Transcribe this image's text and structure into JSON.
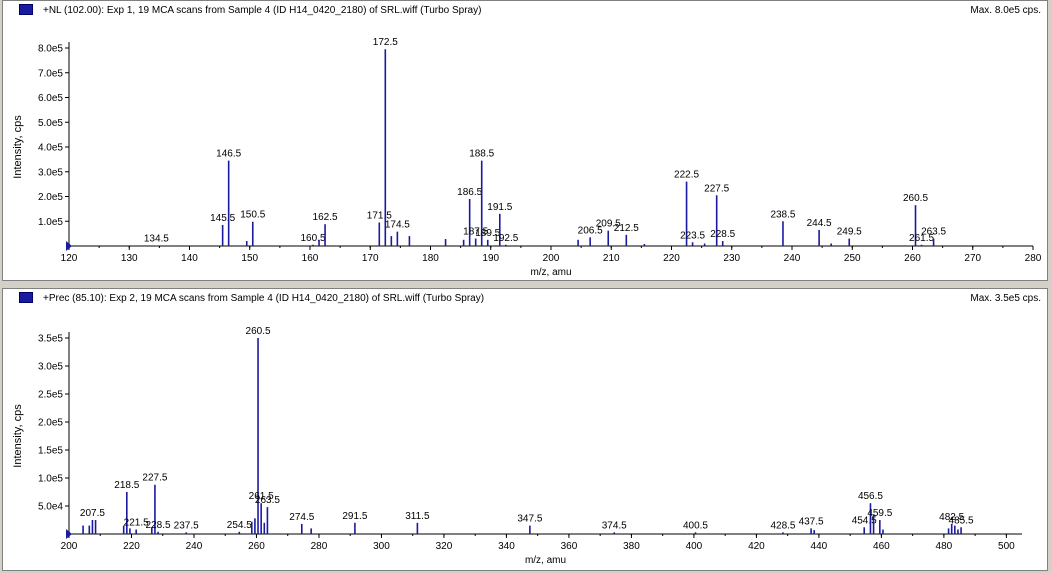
{
  "colors": {
    "trace": "#1a1aa0",
    "axis": "#000000",
    "marker": "#1a1aa0",
    "background": "#ffffff",
    "frame": "#d4d0c8"
  },
  "panels": [
    {
      "title": "+NL (102.00): Exp 1, 19 MCA scans from Sample 4 (ID H14_0420_2180) of SRL.wiff (Turbo Spray)",
      "max_label": "Max. 8.0e5 cps."
    },
    {
      "title": "+Prec (85.10): Exp 2, 19 MCA scans from Sample 4 (ID H14_0420_2180) of SRL.wiff (Turbo Spray)",
      "max_label": "Max. 3.5e5 cps."
    }
  ],
  "chart_data": [
    {
      "type": "bar",
      "xlabel": "m/z, amu",
      "ylabel": "Intensity, cps",
      "xlim": [
        120,
        280
      ],
      "ylim": [
        0,
        800000
      ],
      "xticks": [
        120,
        130,
        140,
        150,
        160,
        170,
        180,
        190,
        200,
        210,
        220,
        230,
        240,
        250,
        260,
        270,
        280
      ],
      "xtick_labels": [
        "120",
        "130",
        "140",
        "150",
        "160",
        "170",
        "180",
        "190",
        "200",
        "210",
        "220",
        "230",
        "240",
        "250",
        "260",
        "270",
        "280"
      ],
      "yticks": [
        100000,
        200000,
        300000,
        400000,
        500000,
        600000,
        700000,
        800000
      ],
      "ytick_labels": [
        "1.0e5",
        "2.0e5",
        "3.0e5",
        "4.0e5",
        "5.0e5",
        "6.0e5",
        "7.0e5",
        "8.0e5"
      ],
      "peaks": [
        {
          "x": 134.5,
          "y": 2000,
          "label": "134.5"
        },
        {
          "x": 145.5,
          "y": 85000,
          "label": "145.5"
        },
        {
          "x": 146.5,
          "y": 345000,
          "label": "146.5"
        },
        {
          "x": 149.5,
          "y": 20000,
          "label": ""
        },
        {
          "x": 150.5,
          "y": 98000,
          "label": "150.5"
        },
        {
          "x": 160.5,
          "y": 5000,
          "label": "160.5"
        },
        {
          "x": 161.5,
          "y": 25000,
          "label": ""
        },
        {
          "x": 162.5,
          "y": 88000,
          "label": "162.5"
        },
        {
          "x": 171.5,
          "y": 95000,
          "label": "171.5"
        },
        {
          "x": 172.5,
          "y": 795000,
          "label": "172.5"
        },
        {
          "x": 173.5,
          "y": 40000,
          "label": ""
        },
        {
          "x": 174.5,
          "y": 58000,
          "label": "174.5"
        },
        {
          "x": 176.5,
          "y": 40000,
          "label": ""
        },
        {
          "x": 182.5,
          "y": 28000,
          "label": ""
        },
        {
          "x": 185.5,
          "y": 25000,
          "label": ""
        },
        {
          "x": 186.5,
          "y": 190000,
          "label": "186.5"
        },
        {
          "x": 187.5,
          "y": 30000,
          "label": "187.5"
        },
        {
          "x": 188.5,
          "y": 345000,
          "label": "188.5"
        },
        {
          "x": 189.5,
          "y": 25000,
          "label": "189.5"
        },
        {
          "x": 191.5,
          "y": 130000,
          "label": "191.5"
        },
        {
          "x": 192.5,
          "y": 5000,
          "label": "192.5"
        },
        {
          "x": 204.5,
          "y": 25000,
          "label": ""
        },
        {
          "x": 206.5,
          "y": 35000,
          "label": "206.5"
        },
        {
          "x": 209.5,
          "y": 62000,
          "label": "209.5"
        },
        {
          "x": 212.5,
          "y": 45000,
          "label": "212.5"
        },
        {
          "x": 215.5,
          "y": 8000,
          "label": ""
        },
        {
          "x": 222.5,
          "y": 260000,
          "label": "222.5"
        },
        {
          "x": 223.5,
          "y": 15000,
          "label": "223.5"
        },
        {
          "x": 225.5,
          "y": 10000,
          "label": ""
        },
        {
          "x": 227.5,
          "y": 205000,
          "label": "227.5"
        },
        {
          "x": 228.5,
          "y": 20000,
          "label": "228.5"
        },
        {
          "x": 238.5,
          "y": 100000,
          "label": "238.5"
        },
        {
          "x": 244.5,
          "y": 65000,
          "label": "244.5"
        },
        {
          "x": 246.5,
          "y": 10000,
          "label": ""
        },
        {
          "x": 249.5,
          "y": 30000,
          "label": "249.5"
        },
        {
          "x": 260.5,
          "y": 165000,
          "label": "260.5"
        },
        {
          "x": 261.5,
          "y": 5000,
          "label": "261.5"
        },
        {
          "x": 263.5,
          "y": 30000,
          "label": "263.5"
        }
      ]
    },
    {
      "type": "bar",
      "xlabel": "m/z, amu",
      "ylabel": "Intensity, cps",
      "xlim": [
        200,
        505
      ],
      "ylim": [
        0,
        350000
      ],
      "xticks": [
        200,
        220,
        240,
        260,
        280,
        300,
        320,
        340,
        360,
        380,
        400,
        420,
        440,
        460,
        480,
        500
      ],
      "xtick_labels": [
        "200",
        "220",
        "240",
        "260",
        "280",
        "300",
        "320",
        "340",
        "360",
        "380",
        "400",
        "420",
        "440",
        "460",
        "480",
        "500"
      ],
      "yticks": [
        50000,
        100000,
        150000,
        200000,
        250000,
        300000,
        350000
      ],
      "ytick_labels": [
        "5.0e4",
        "1.0e5",
        "1.5e5",
        "2.0e5",
        "2.5e5",
        "3.0e5",
        "3.5e5"
      ],
      "peaks": [
        {
          "x": 204.5,
          "y": 15000,
          "label": ""
        },
        {
          "x": 206.5,
          "y": 15000,
          "label": ""
        },
        {
          "x": 207.5,
          "y": 25000,
          "label": "207.5"
        },
        {
          "x": 208.5,
          "y": 25000,
          "label": ""
        },
        {
          "x": 217.5,
          "y": 15000,
          "label": ""
        },
        {
          "x": 218.5,
          "y": 75000,
          "label": "218.5"
        },
        {
          "x": 219.5,
          "y": 10000,
          "label": ""
        },
        {
          "x": 221.5,
          "y": 8000,
          "label": "221.5"
        },
        {
          "x": 226.5,
          "y": 12000,
          "label": ""
        },
        {
          "x": 227.5,
          "y": 88000,
          "label": "227.5"
        },
        {
          "x": 228.5,
          "y": 4000,
          "label": "228.5"
        },
        {
          "x": 237.5,
          "y": 3000,
          "label": "237.5"
        },
        {
          "x": 254.5,
          "y": 4000,
          "label": "254.5"
        },
        {
          "x": 258.5,
          "y": 22000,
          "label": ""
        },
        {
          "x": 259.5,
          "y": 28000,
          "label": ""
        },
        {
          "x": 260.5,
          "y": 350000,
          "label": "260.5"
        },
        {
          "x": 261.5,
          "y": 55000,
          "label": "261.5"
        },
        {
          "x": 262.5,
          "y": 20000,
          "label": ""
        },
        {
          "x": 263.5,
          "y": 48000,
          "label": "263.5"
        },
        {
          "x": 274.5,
          "y": 18000,
          "label": "274.5"
        },
        {
          "x": 277.5,
          "y": 10000,
          "label": ""
        },
        {
          "x": 291.5,
          "y": 20000,
          "label": "291.5"
        },
        {
          "x": 311.5,
          "y": 20000,
          "label": "311.5"
        },
        {
          "x": 347.5,
          "y": 15000,
          "label": "347.5"
        },
        {
          "x": 374.5,
          "y": 3000,
          "label": "374.5"
        },
        {
          "x": 400.5,
          "y": 3000,
          "label": "400.5"
        },
        {
          "x": 428.5,
          "y": 3000,
          "label": "428.5"
        },
        {
          "x": 437.5,
          "y": 10000,
          "label": "437.5"
        },
        {
          "x": 438.5,
          "y": 7000,
          "label": ""
        },
        {
          "x": 454.5,
          "y": 12000,
          "label": "454.5"
        },
        {
          "x": 456.5,
          "y": 55000,
          "label": "456.5"
        },
        {
          "x": 457.5,
          "y": 35000,
          "label": ""
        },
        {
          "x": 459.5,
          "y": 25000,
          "label": "459.5"
        },
        {
          "x": 460.5,
          "y": 8000,
          "label": ""
        },
        {
          "x": 481.5,
          "y": 10000,
          "label": ""
        },
        {
          "x": 482.5,
          "y": 18000,
          "label": "482.5"
        },
        {
          "x": 483.5,
          "y": 15000,
          "label": ""
        },
        {
          "x": 484.5,
          "y": 8000,
          "label": ""
        },
        {
          "x": 485.5,
          "y": 12000,
          "label": "485.5"
        }
      ]
    }
  ]
}
